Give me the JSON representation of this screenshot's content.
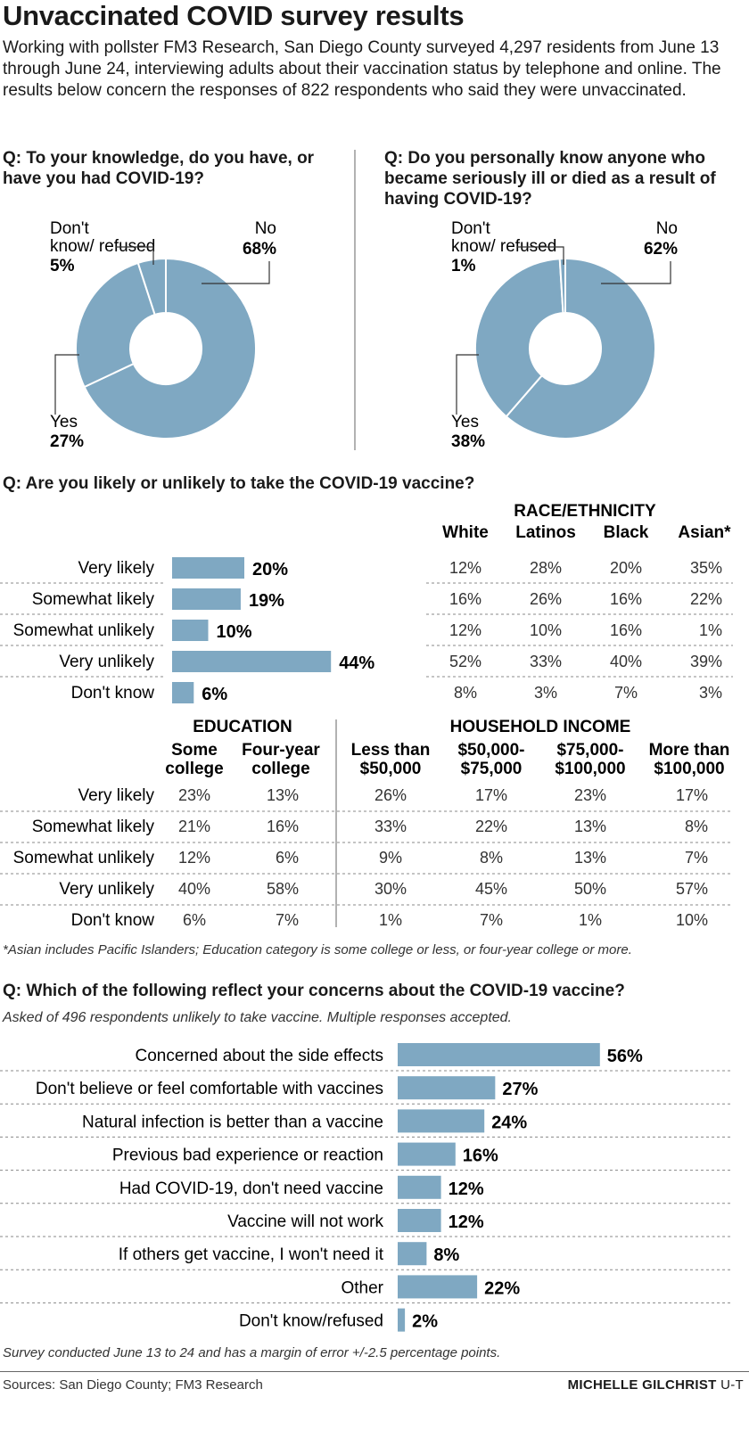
{
  "title": "Unvaccinated COVID survey results",
  "intro": "Working with pollster FM3 Research, San Diego County surveyed 4,297 residents from June 13 through June 24, interviewing adults about their vaccination status by telephone and online. The results below concern the responses of 822 respondents who said they were unvaccinated.",
  "colors": {
    "bar": "#7fa8c2",
    "text": "#1a1a1a",
    "rule": "#999999"
  },
  "chart_data": [
    {
      "type": "pie",
      "title": "Q: To your knowledge, do you have, or have you had COVID-19?",
      "slices": [
        {
          "label": "No",
          "value": 68
        },
        {
          "label": "Yes",
          "value": 27
        },
        {
          "label": "Don't know/ refused",
          "value": 5
        }
      ]
    },
    {
      "type": "pie",
      "title": "Q: Do you personally know anyone who became seriously ill or died as a result of having COVID-19?",
      "slices": [
        {
          "label": "No",
          "value": 62
        },
        {
          "label": "Yes",
          "value": 38
        },
        {
          "label": "Don't know/ refused",
          "value": 1
        }
      ]
    },
    {
      "type": "bar",
      "title": "Q: Are you likely or unlikely to take the COVID-19 vaccine?",
      "categories": [
        "Very likely",
        "Somewhat likely",
        "Somewhat unlikely",
        "Very unlikely",
        "Don't know"
      ],
      "values": [
        20,
        19,
        10,
        44,
        6
      ]
    },
    {
      "type": "table",
      "title": "RACE/ETHNICITY",
      "columns": [
        "White",
        "Latinos",
        "Black",
        "Asian*"
      ],
      "rows": [
        "Very likely",
        "Somewhat likely",
        "Somewhat unlikely",
        "Very unlikely",
        "Don't know"
      ],
      "values": [
        [
          "12%",
          "28%",
          "20%",
          "35%"
        ],
        [
          "16%",
          "26%",
          "16%",
          "22%"
        ],
        [
          "12%",
          "10%",
          "16%",
          "1%"
        ],
        [
          "52%",
          "33%",
          "40%",
          "39%"
        ],
        [
          "8%",
          "3%",
          "7%",
          "3%"
        ]
      ]
    },
    {
      "type": "table",
      "groups": [
        {
          "title": "EDUCATION",
          "columns": [
            "Some college",
            "Four-year college"
          ]
        },
        {
          "title": "HOUSEHOLD INCOME",
          "columns": [
            "Less than $50,000",
            "$50,000- $75,000",
            "$75,000- $100,000",
            "More than $100,000"
          ]
        }
      ],
      "rows": [
        "Very likely",
        "Somewhat likely",
        "Somewhat unlikely",
        "Very unlikely",
        "Don't know"
      ],
      "values": [
        [
          "23%",
          "13%",
          "26%",
          "17%",
          "23%",
          "17%"
        ],
        [
          "21%",
          "16%",
          "33%",
          "22%",
          "13%",
          "8%"
        ],
        [
          "12%",
          "6%",
          "9%",
          "8%",
          "13%",
          "7%"
        ],
        [
          "40%",
          "58%",
          "30%",
          "45%",
          "50%",
          "57%"
        ],
        [
          "6%",
          "7%",
          "1%",
          "7%",
          "1%",
          "10%"
        ]
      ]
    },
    {
      "type": "bar",
      "title": "Q: Which of the following reflect your concerns about the COVID-19 vaccine?",
      "subtitle": "Asked of 496 respondents unlikely to take vaccine. Multiple responses accepted.",
      "categories": [
        "Concerned about the side effects",
        "Don't believe or feel comfortable with vaccines",
        "Natural infection is better than a vaccine",
        "Previous bad experience or reaction",
        "Had COVID-19, don't need vaccine",
        "Vaccine will not work",
        "If others get vaccine, I won't need it",
        "Other",
        "Don't know/refused"
      ],
      "values": [
        56,
        27,
        24,
        16,
        12,
        12,
        8,
        22,
        2
      ]
    }
  ],
  "footnote": "*Asian includes Pacific Islanders; Education category is some college or less, or four-year college or more.",
  "survey_note": "Survey conducted June 13 to 24 and has a margin of error +/-2.5 percentage points.",
  "sources": "Sources: San Diego County; FM3 Research",
  "credit": {
    "name": "MICHELLE GILCHRIST",
    "org": "U-T"
  }
}
